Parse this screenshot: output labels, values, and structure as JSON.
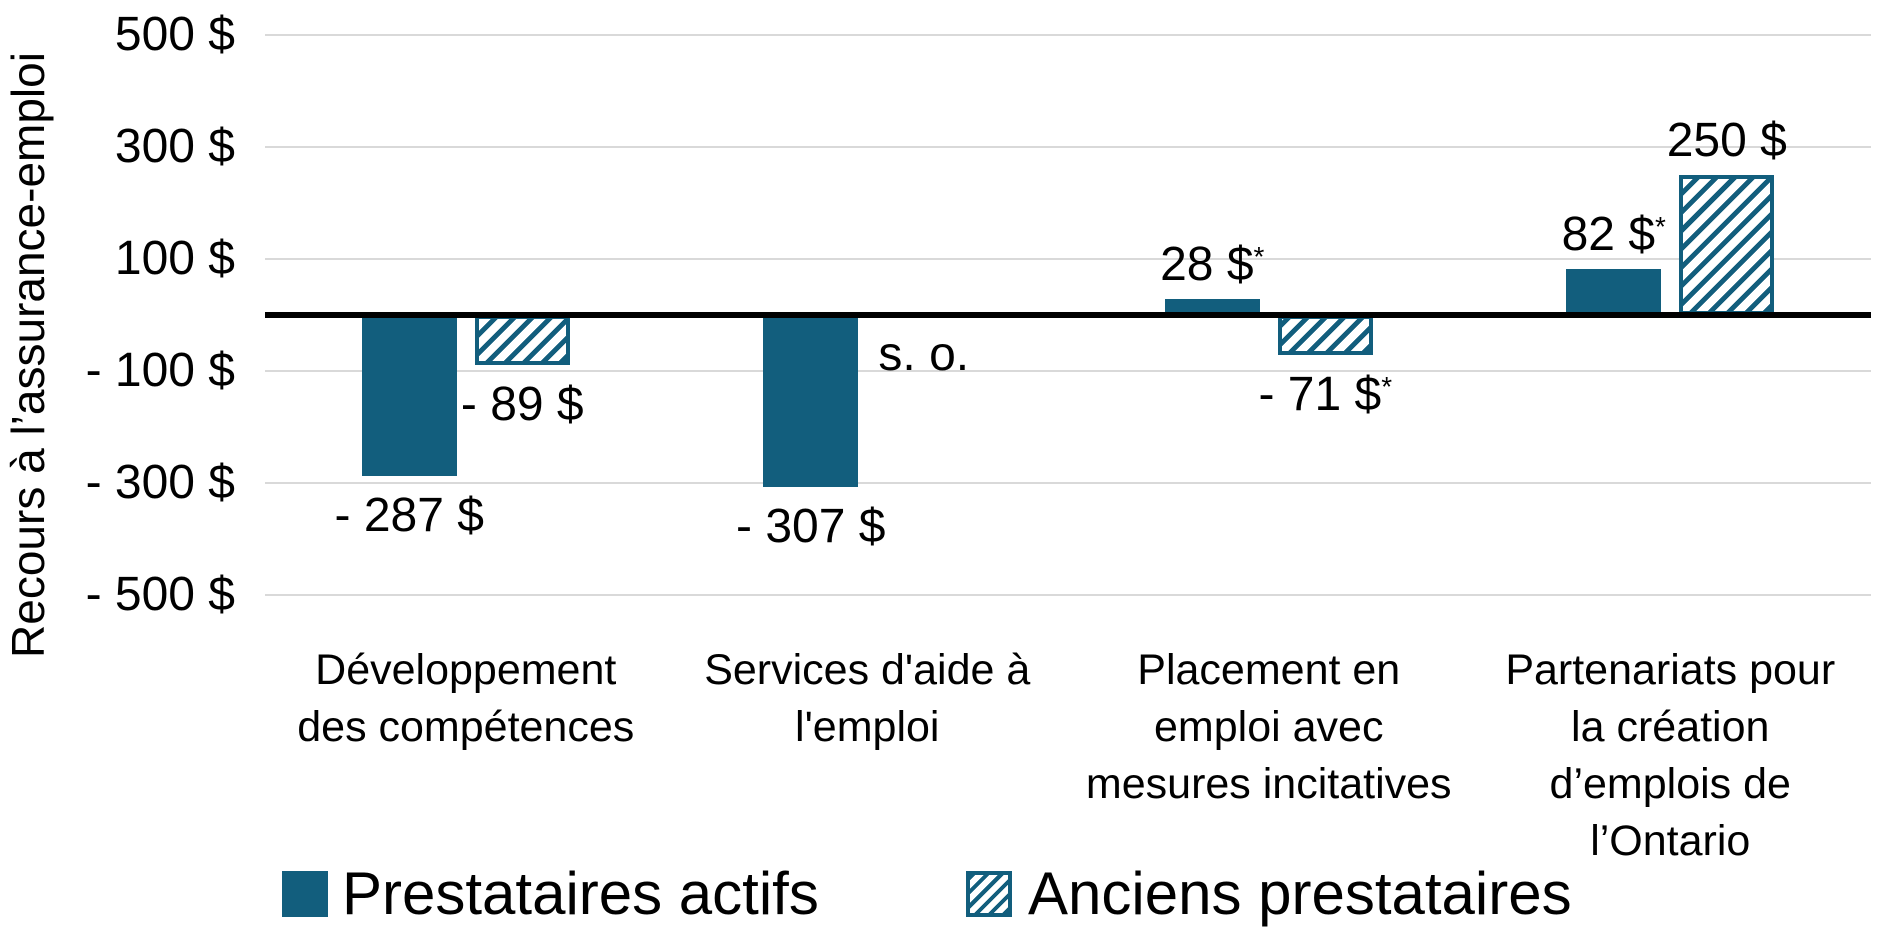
{
  "chart_data": {
    "type": "bar",
    "title": "",
    "ylabel": "Recours à l’assurance-emploi",
    "ylim": [
      -500,
      500
    ],
    "grid": true,
    "legend_position": "bottom",
    "colors": {
      "bar_teal": "#125E7D",
      "gridline": "#D9D9D9",
      "axis_line": "#000000",
      "text": "#000000",
      "background": "#FFFFFF"
    },
    "yticks": [
      {
        "value": 500,
        "label": "500 $"
      },
      {
        "value": 300,
        "label": "300 $"
      },
      {
        "value": 100,
        "label": "100 $"
      },
      {
        "value": -100,
        "label": "- 100 $"
      },
      {
        "value": -300,
        "label": "- 300 $"
      },
      {
        "value": -500,
        "label": "- 500 $"
      }
    ],
    "categories": [
      {
        "label": "Développement des compétences",
        "lines": [
          "Développement",
          "des compétences"
        ]
      },
      {
        "label": "Services d'aide à l'emploi",
        "lines": [
          "Services d'aide à",
          "l'emploi"
        ]
      },
      {
        "label": "Placement en emploi avec mesures incitatives",
        "lines": [
          "Placement en",
          "emploi avec",
          "mesures incitatives"
        ]
      },
      {
        "label": "Partenariats pour la création d’emplois de l’Ontario",
        "lines": [
          "Partenariats pour",
          "la création",
          "d’emplois de",
          "l’Ontario"
        ]
      }
    ],
    "series": [
      {
        "name": "Prestataires actifs",
        "style": "solid",
        "values": [
          -287,
          -307,
          28,
          82
        ],
        "labels": [
          {
            "text": "- 287 $",
            "sup": ""
          },
          {
            "text": "- 307 $",
            "sup": ""
          },
          {
            "text": "28 $",
            "sup": "*"
          },
          {
            "text": "82 $",
            "sup": "*"
          }
        ]
      },
      {
        "name": "Anciens prestataires",
        "style": "hatched",
        "values": [
          -89,
          null,
          -71,
          250
        ],
        "labels": [
          {
            "text": "- 89 $",
            "sup": ""
          },
          {
            "text": "s. o.",
            "sup": ""
          },
          {
            "text": "- 71 $",
            "sup": "*"
          },
          {
            "text": "250 $",
            "sup": ""
          }
        ]
      }
    ],
    "na_label": "s. o."
  }
}
